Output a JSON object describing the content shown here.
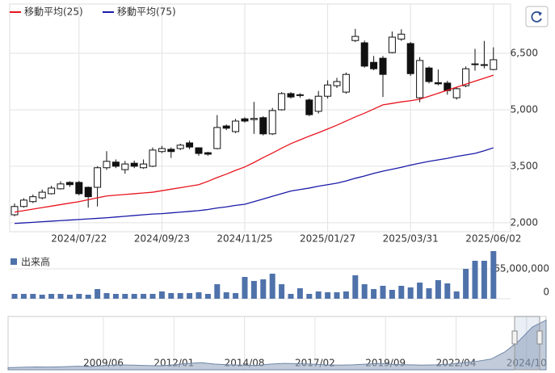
{
  "chart_data": [
    {
      "type": "candlestick",
      "categories": [
        null,
        null,
        null,
        null,
        null,
        null,
        null,
        "2024/07/22",
        null,
        null,
        null,
        null,
        null,
        null,
        null,
        null,
        "2024/09/23",
        null,
        null,
        null,
        null,
        null,
        null,
        null,
        null,
        "2024/11/25",
        null,
        null,
        null,
        null,
        null,
        null,
        null,
        null,
        "2025/01/27",
        null,
        null,
        null,
        null,
        null,
        null,
        null,
        null,
        "2025/03/31",
        null,
        null,
        null,
        null,
        null,
        null,
        null,
        null,
        "2025/06/02"
      ],
      "open": [
        2210,
        2430,
        2560,
        2660,
        2770,
        2900,
        3070,
        3070,
        2940,
        2940,
        3460,
        3610,
        3410,
        3580,
        3460,
        3500,
        3890,
        3950,
        3970,
        4120,
        3990,
        3860,
        3970,
        4570,
        4420,
        4760,
        4740,
        4790,
        4360,
        5000,
        5430,
        5400,
        5260,
        4960,
        5360,
        5640,
        5470,
        6840,
        6780,
        6260,
        6370,
        6520,
        6880,
        6760,
        5320,
        6110,
        5720,
        5710,
        5320,
        5640,
        6200,
        6190,
        6070
      ],
      "high": [
        2510,
        2650,
        2750,
        2880,
        2980,
        3100,
        3100,
        3110,
        2960,
        3500,
        3900,
        3680,
        3640,
        3650,
        3680,
        4000,
        4040,
        4000,
        4100,
        4180,
        4000,
        3880,
        4860,
        4610,
        4760,
        4800,
        5210,
        4830,
        5050,
        5470,
        5470,
        5440,
        5300,
        5500,
        5780,
        5850,
        5990,
        7150,
        6840,
        6430,
        6430,
        7080,
        7140,
        6800,
        6400,
        6150,
        6070,
        5770,
        5610,
        6150,
        6620,
        6830,
        6660
      ],
      "low": [
        2170,
        2400,
        2520,
        2620,
        2750,
        2880,
        2950,
        2730,
        2400,
        2430,
        3400,
        3450,
        3300,
        3450,
        3430,
        3480,
        3850,
        3720,
        3930,
        3950,
        3780,
        3780,
        3950,
        4460,
        4380,
        4660,
        4360,
        4320,
        4330,
        4980,
        5300,
        5320,
        4830,
        4900,
        5300,
        5580,
        5430,
        6800,
        6120,
        6050,
        5340,
        6500,
        6830,
        5900,
        5200,
        5700,
        5650,
        5400,
        5270,
        5600,
        6040,
        6100,
        6050
      ],
      "close": [
        2430,
        2600,
        2690,
        2810,
        2920,
        3030,
        3010,
        2770,
        2690,
        3460,
        3630,
        3500,
        3560,
        3500,
        3560,
        3930,
        3970,
        3890,
        4060,
        4010,
        3840,
        3820,
        4530,
        4510,
        4700,
        4700,
        4770,
        4360,
        4980,
        5430,
        5340,
        5380,
        4870,
        5360,
        5660,
        5750,
        5940,
        6950,
        6160,
        6090,
        5940,
        6930,
        7010,
        5960,
        6310,
        5750,
        5690,
        5510,
        5560,
        6090,
        6220,
        6200,
        6330
      ],
      "up_color": "#ffffff",
      "down_color": "#111111",
      "series": [
        {
          "name": "移動平均(25)",
          "color": "#e8141e",
          "values": [
            2280,
            2320,
            2360,
            2400,
            2440,
            2480,
            2520,
            2560,
            2610,
            2660,
            2710,
            2730,
            2750,
            2770,
            2790,
            2810,
            2850,
            2890,
            2930,
            2970,
            3010,
            3100,
            3200,
            3290,
            3390,
            3480,
            3600,
            3730,
            3850,
            3980,
            4100,
            4200,
            4300,
            4390,
            4490,
            4590,
            4700,
            4810,
            4910,
            5020,
            5130,
            5170,
            5210,
            5240,
            5280,
            5360,
            5440,
            5520,
            5600,
            5680,
            5760,
            5840,
            5920
          ]
        },
        {
          "name": "移動平均(75)",
          "color": "#1a1aa8",
          "values": [
            1980,
            1995,
            2010,
            2025,
            2040,
            2055,
            2070,
            2085,
            2100,
            2115,
            2130,
            2150,
            2170,
            2190,
            2210,
            2230,
            2240,
            2260,
            2280,
            2300,
            2320,
            2350,
            2390,
            2420,
            2460,
            2490,
            2560,
            2630,
            2700,
            2770,
            2840,
            2880,
            2920,
            2970,
            3010,
            3050,
            3110,
            3180,
            3240,
            3310,
            3370,
            3420,
            3470,
            3530,
            3580,
            3630,
            3670,
            3710,
            3760,
            3800,
            3840,
            3910,
            3990
          ]
        }
      ],
      "ylim": [
        1760,
        7810
      ],
      "yticks": [
        {
          "value": 2000,
          "label": "2,000"
        },
        {
          "value": 3500,
          "label": "3,500"
        },
        {
          "value": 5000,
          "label": "5,000"
        },
        {
          "value": 6500,
          "label": "6,500"
        }
      ],
      "grid": true
    },
    {
      "type": "bar",
      "title": "出来高",
      "color": "#4f72aa",
      "values": [
        10500000,
        10500000,
        10500000,
        8800000,
        10500000,
        10500000,
        8800000,
        10500000,
        8800000,
        21000000,
        12300000,
        10500000,
        10500000,
        10500000,
        10500000,
        10500000,
        15800000,
        12300000,
        12300000,
        12300000,
        14000000,
        10500000,
        31600000,
        14000000,
        12300000,
        47400000,
        38700000,
        42200000,
        54500000,
        31600000,
        10500000,
        22800000,
        10500000,
        15800000,
        14000000,
        14000000,
        15800000,
        51000000,
        31600000,
        21000000,
        28100000,
        19300000,
        28100000,
        24600000,
        35100000,
        22800000,
        40400000,
        33400000,
        15800000,
        65000000,
        82600000,
        82600000,
        103700000
      ],
      "ylim": [
        0,
        123000000
      ],
      "yticks": [
        0,
        {
          "value": 65000000,
          "label": "65,000,000"
        }
      ]
    }
  ],
  "navigator": {
    "type": "area",
    "color": "#9aa9bf",
    "labels": [
      "2009/06",
      "2012/01",
      "2014/08",
      "2017/02",
      "2019/09",
      "2022/04",
      "2024/10"
    ],
    "values": [
      300,
      350,
      400,
      380,
      420,
      500,
      450,
      600,
      700,
      650,
      600,
      550,
      700,
      900,
      1000,
      800,
      700,
      650,
      600,
      800,
      900,
      850,
      800,
      700,
      650,
      700,
      800,
      900,
      750,
      700,
      650,
      700,
      800,
      1000,
      1200,
      1500,
      2500,
      4000,
      6000,
      7000
    ],
    "ylim": [
      0,
      7500
    ]
  }
}
